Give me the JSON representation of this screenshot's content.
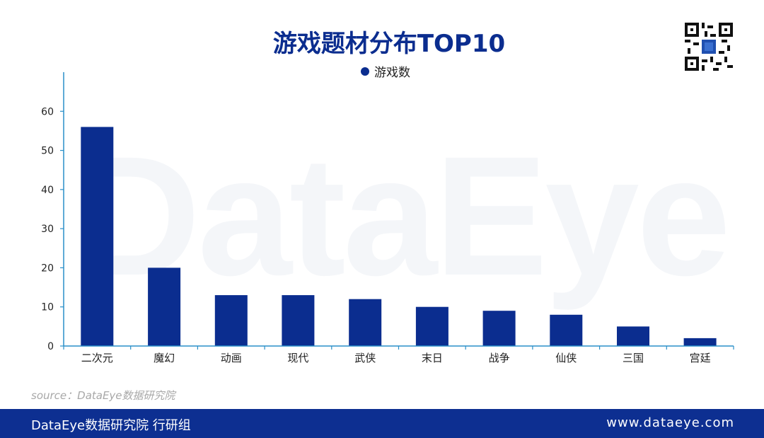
{
  "watermark": "DataEye",
  "colors": {
    "bar": "#0b2d8f",
    "axis": "#2a8fc8",
    "footer_bg": "#0d2f91"
  },
  "qr_icon": "qr-code-icon",
  "source": "source：DataEye数据研究院",
  "footer": {
    "left": "DataEye数据研究院 行研组",
    "right": "www.dataeye.com"
  },
  "chart_data": {
    "type": "bar",
    "title": "游戏题材分布TOP10",
    "legend_position": "top-center",
    "grid": false,
    "categories": [
      "二次元",
      "魔幻",
      "动画",
      "现代",
      "武侠",
      "末日",
      "战争",
      "仙侠",
      "三国",
      "宫廷"
    ],
    "series": [
      {
        "name": "游戏数",
        "values": [
          56,
          20,
          13,
          13,
          12,
          10,
          9,
          8,
          5,
          2
        ]
      }
    ],
    "ylim": [
      0,
      70
    ],
    "yticks": [
      0,
      10,
      20,
      30,
      40,
      50,
      60
    ],
    "xlabel": "",
    "ylabel": ""
  }
}
